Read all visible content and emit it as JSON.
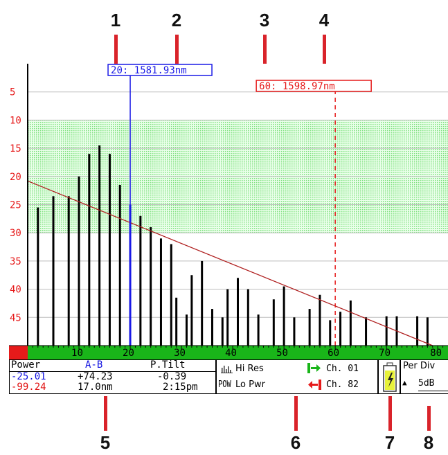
{
  "callouts": [
    "1",
    "2",
    "3",
    "4",
    "5",
    "6",
    "7",
    "8"
  ],
  "markers": {
    "a": {
      "label": "20: 1581.93nm",
      "channel": 20,
      "color": "#1a1ae6"
    },
    "b": {
      "label": "60: 1598.97nm",
      "channel": 60,
      "color": "#e61a1a"
    }
  },
  "chart_data": {
    "type": "bar",
    "x": [
      2,
      5,
      8,
      10,
      12,
      14,
      16,
      18,
      20,
      22,
      24,
      26,
      28,
      29,
      31,
      32,
      34,
      36,
      38,
      39,
      41,
      43,
      45,
      48,
      50,
      52,
      55,
      57,
      59,
      61,
      63,
      66,
      70,
      72,
      76,
      78
    ],
    "values": [
      25.5,
      23.5,
      23.5,
      20,
      16,
      14.5,
      16,
      21.5,
      25,
      27,
      29,
      31,
      32,
      41.5,
      44.5,
      37.5,
      35,
      43.5,
      45,
      40,
      38,
      40,
      44.5,
      41.8,
      39.5,
      45,
      43.5,
      41,
      45.5,
      44,
      42,
      45,
      44.8,
      44.8,
      44.8,
      45
    ],
    "xlim": [
      0,
      82
    ],
    "ylim": [
      50,
      0
    ],
    "xticks": [
      "10",
      "20",
      "30",
      "40",
      "50",
      "60",
      "70",
      "80"
    ],
    "yticks": [
      "5",
      "10",
      "15",
      "20",
      "25",
      "30",
      "35",
      "40",
      "45"
    ],
    "tilt_line": {
      "x": [
        0,
        79
      ],
      "y": [
        20.8,
        50
      ]
    },
    "passband": [
      10,
      30
    ]
  },
  "status": {
    "col1_header": "Power",
    "col2_header": "A-B",
    "col3_header": "P.Tilt",
    "row1": {
      "power": "-25.01",
      "ab": "+74.23",
      "tilt": "-0.39"
    },
    "row2": {
      "power": "-99.24",
      "ab": "17.0nm",
      "tilt": "2:15pm"
    }
  },
  "modes": {
    "hi_res": "Hi Res",
    "pow_label": "POW",
    "lo_pwr": "Lo Pwr",
    "ch_a": "Ch. 01",
    "ch_b": "Ch. 82"
  },
  "per_div": {
    "title": "Per Div",
    "value": "5dB"
  },
  "colors": {
    "axis_green": "#19b519",
    "grid_green": "#7ee07e",
    "accent_red": "#d9232a"
  }
}
